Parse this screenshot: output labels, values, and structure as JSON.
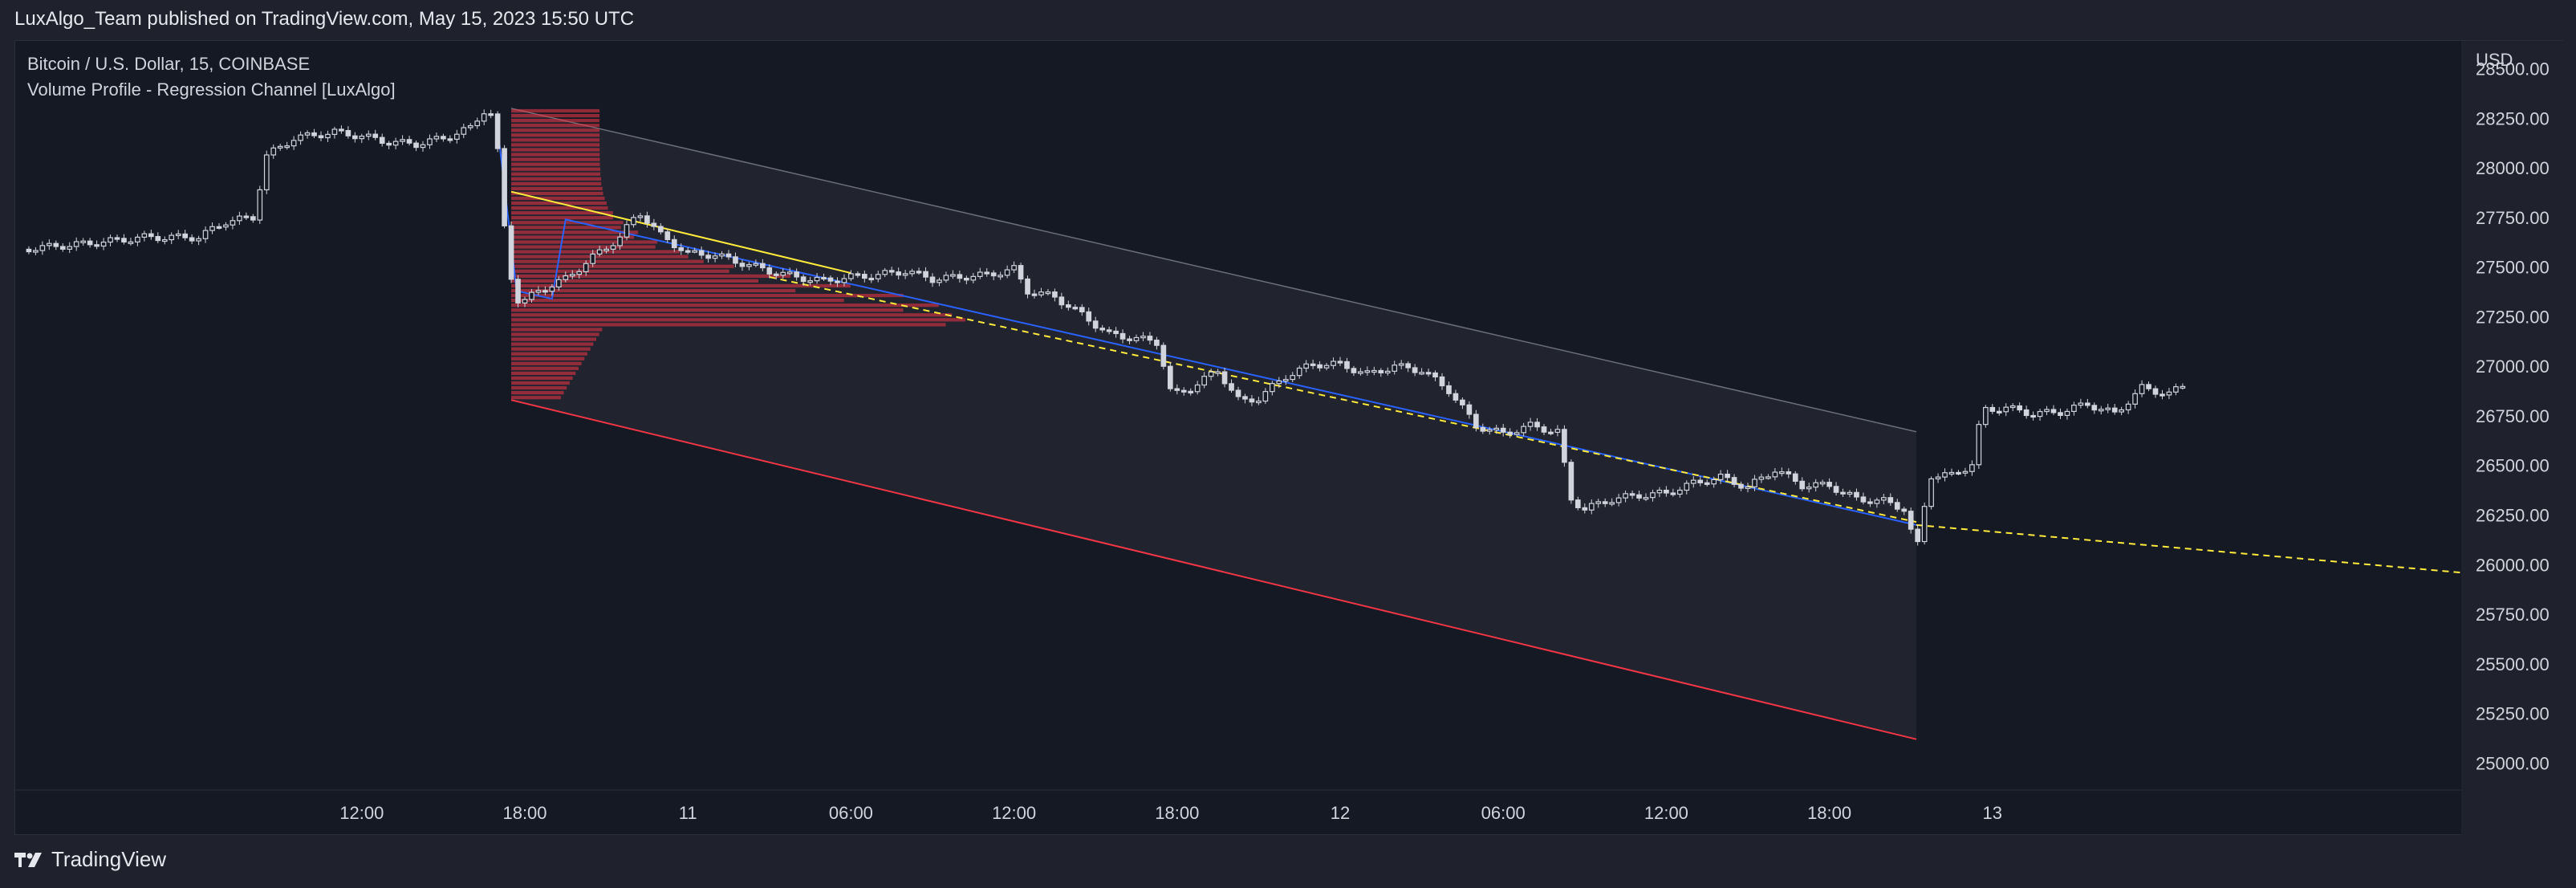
{
  "header": {
    "published": "LuxAlgo_Team published on TradingView.com, May 15, 2023 15:50 UTC"
  },
  "legend": {
    "symbol": "Bitcoin / U.S. Dollar, 15, COINBASE",
    "indicator": "Volume Profile - Regression Channel [LuxAlgo]"
  },
  "footer": {
    "brand": "TradingView"
  },
  "colors": {
    "background": "#151924",
    "candle": "#d1d4dc",
    "upper_line": "#6b6e78",
    "lower_line": "#f23645",
    "regression": "#2962ff",
    "poc": "#ffeb3b",
    "profile": "#f23645"
  },
  "chart_data": {
    "type": "candlestick",
    "y_unit": "USD",
    "ylim": [
      24880,
      28640
    ],
    "y_ticks": [
      "28500.00",
      "28250.00",
      "28000.00",
      "27750.00",
      "27500.00",
      "27250.00",
      "27000.00",
      "26750.00",
      "26500.00",
      "26250.00",
      "26000.00",
      "25750.00",
      "25500.00",
      "25250.00",
      "25000.00"
    ],
    "y_tick_values": [
      28500,
      28250,
      28000,
      27750,
      27500,
      27250,
      27000,
      26750,
      26500,
      26250,
      26000,
      25750,
      25500,
      25250,
      25000
    ],
    "x_range_hours": [
      -12.75,
      77.25
    ],
    "x_ticks": [
      {
        "label": "12:00",
        "hour": 0
      },
      {
        "label": "18:00",
        "hour": 6
      },
      {
        "label": "11",
        "hour": 12
      },
      {
        "label": "06:00",
        "hour": 18
      },
      {
        "label": "12:00",
        "hour": 24
      },
      {
        "label": "18:00",
        "hour": 30
      },
      {
        "label": "12",
        "hour": 36
      },
      {
        "label": "06:00",
        "hour": 42
      },
      {
        "label": "12:00",
        "hour": 48
      },
      {
        "label": "18:00",
        "hour": 54
      },
      {
        "label": "13",
        "hour": 60
      }
    ],
    "price_path": [
      [
        -12.5,
        27590
      ],
      [
        -10,
        27620
      ],
      [
        -8,
        27650
      ],
      [
        -6,
        27650
      ],
      [
        -5,
        27730
      ],
      [
        -4,
        27750
      ],
      [
        -3.5,
        28060
      ],
      [
        -2.5,
        28150
      ],
      [
        -1,
        28180
      ],
      [
        0,
        28160
      ],
      [
        1,
        28130
      ],
      [
        2,
        28120
      ],
      [
        3,
        28150
      ],
      [
        4,
        28200
      ],
      [
        4.5,
        28290
      ],
      [
        4.9,
        28260
      ],
      [
        5.1,
        27900
      ],
      [
        5.4,
        27500
      ],
      [
        5.8,
        27310
      ],
      [
        6.5,
        27380
      ],
      [
        7.5,
        27440
      ],
      [
        8.5,
        27550
      ],
      [
        9.5,
        27650
      ],
      [
        10.2,
        27780
      ],
      [
        11,
        27660
      ],
      [
        12,
        27570
      ],
      [
        13,
        27560
      ],
      [
        14,
        27520
      ],
      [
        15,
        27480
      ],
      [
        16,
        27450
      ],
      [
        17,
        27430
      ],
      [
        18,
        27450
      ],
      [
        19,
        27460
      ],
      [
        20,
        27480
      ],
      [
        21,
        27440
      ],
      [
        22,
        27450
      ],
      [
        23,
        27460
      ],
      [
        24,
        27490
      ],
      [
        24.5,
        27380
      ],
      [
        25.5,
        27350
      ],
      [
        26.5,
        27260
      ],
      [
        27.5,
        27160
      ],
      [
        28.5,
        27140
      ],
      [
        29.3,
        27120
      ],
      [
        29.8,
        26850
      ],
      [
        30.5,
        26890
      ],
      [
        31.5,
        26980
      ],
      [
        32.3,
        26820
      ],
      [
        33,
        26840
      ],
      [
        34,
        26950
      ],
      [
        35,
        27010
      ],
      [
        36,
        27010
      ],
      [
        37,
        26960
      ],
      [
        38,
        27000
      ],
      [
        39,
        26980
      ],
      [
        40,
        26880
      ],
      [
        41,
        26700
      ],
      [
        42,
        26660
      ],
      [
        43,
        26700
      ],
      [
        44,
        26670
      ],
      [
        44.5,
        26330
      ],
      [
        45,
        26280
      ],
      [
        46,
        26330
      ],
      [
        47,
        26350
      ],
      [
        48,
        26360
      ],
      [
        49,
        26410
      ],
      [
        50,
        26440
      ],
      [
        51,
        26390
      ],
      [
        52,
        26480
      ],
      [
        53,
        26400
      ],
      [
        54,
        26400
      ],
      [
        55,
        26330
      ],
      [
        56,
        26320
      ],
      [
        56.8,
        26280
      ],
      [
        57.2,
        26060
      ],
      [
        57.7,
        26450
      ],
      [
        58.5,
        26450
      ],
      [
        59.3,
        26510
      ],
      [
        59.6,
        26780
      ],
      [
        60.5,
        26790
      ],
      [
        61.5,
        26760
      ],
      [
        62.5,
        26770
      ],
      [
        63.5,
        26810
      ],
      [
        64.5,
        26760
      ],
      [
        65.5,
        26890
      ],
      [
        66.5,
        26860
      ],
      [
        67,
        26900
      ]
    ],
    "regression_channel": {
      "start_hour": 5.5,
      "end_hour": 57.2,
      "upper": [
        28300,
        26670
      ],
      "lower": [
        26830,
        25120
      ]
    },
    "regression_line": {
      "start_hour": 7.5,
      "end_hour": 57.2,
      "values": [
        27740,
        26200
      ]
    },
    "regression_extension": {
      "start_hour": 57.2,
      "end_hour": 77.25,
      "values": [
        26200,
        25960
      ]
    },
    "poc_line": {
      "start_hour": 5.5,
      "end_hour": 18,
      "values": [
        27880,
        27470
      ]
    },
    "volume_profile": {
      "left_hour": 5.5,
      "range": [
        26830,
        28300
      ],
      "rows": 60
    },
    "x_axis_type": "time"
  }
}
